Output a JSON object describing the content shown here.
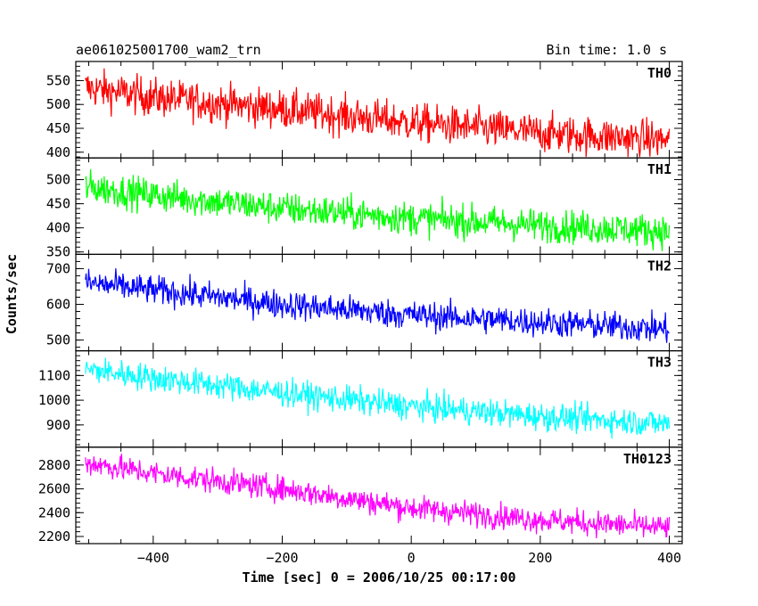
{
  "header": {
    "title": "ae061025001700_wam2_trn",
    "bin_time": "Bin time: 1.0 s"
  },
  "chart_data": {
    "type": "line",
    "xlabel": "Time [sec] 0 = 2006/10/25 00:17:00",
    "ylabel": "Counts/sec",
    "xlim": [
      -520,
      420
    ],
    "xticks": [
      -400,
      -200,
      0,
      200,
      400
    ],
    "grid": false,
    "panels": [
      {
        "label": "TH0",
        "color": "#ff0000",
        "ylim": [
          388,
          590
        ],
        "yticks": [
          400,
          450,
          500,
          550
        ],
        "trend": [
          [
            -505,
            535
          ],
          [
            -400,
            515
          ],
          [
            -200,
            490
          ],
          [
            0,
            462
          ],
          [
            200,
            440
          ],
          [
            400,
            425
          ]
        ],
        "noise": 40,
        "max_shown": 588,
        "min_shown": 390
      },
      {
        "label": "TH1",
        "color": "#00ff00",
        "ylim": [
          345,
          545
        ],
        "yticks": [
          350,
          400,
          450,
          500
        ],
        "trend": [
          [
            -505,
            485
          ],
          [
            -400,
            468
          ],
          [
            -200,
            440
          ],
          [
            0,
            420
          ],
          [
            200,
            405
          ],
          [
            400,
            393
          ]
        ],
        "noise": 34,
        "max_shown": 545,
        "min_shown": 347
      },
      {
        "label": "TH2",
        "color": "#0000ff",
        "ylim": [
          470,
          740
        ],
        "yticks": [
          500,
          600,
          700
        ],
        "trend": [
          [
            -505,
            660
          ],
          [
            -400,
            640
          ],
          [
            -200,
            600
          ],
          [
            0,
            570
          ],
          [
            200,
            550
          ],
          [
            400,
            530
          ]
        ],
        "noise": 40,
        "max_shown": 738,
        "min_shown": 472
      },
      {
        "label": "TH3",
        "color": "#00ffff",
        "ylim": [
          810,
          1200
        ],
        "yticks": [
          900,
          1000,
          1100
        ],
        "trend": [
          [
            -505,
            1125
          ],
          [
            -400,
            1090
          ],
          [
            -200,
            1030
          ],
          [
            0,
            975
          ],
          [
            200,
            935
          ],
          [
            400,
            905
          ]
        ],
        "noise": 55,
        "max_shown": 1198,
        "min_shown": 812
      },
      {
        "label": "TH0123",
        "color": "#ff00ff",
        "ylim": [
          2140,
          2950
        ],
        "yticks": [
          2200,
          2400,
          2600,
          2800
        ],
        "trend": [
          [
            -505,
            2820
          ],
          [
            -400,
            2730
          ],
          [
            -200,
            2600
          ],
          [
            0,
            2440
          ],
          [
            200,
            2340
          ],
          [
            400,
            2270
          ]
        ],
        "noise": 105,
        "max_shown": 2948,
        "min_shown": 2145
      }
    ]
  }
}
